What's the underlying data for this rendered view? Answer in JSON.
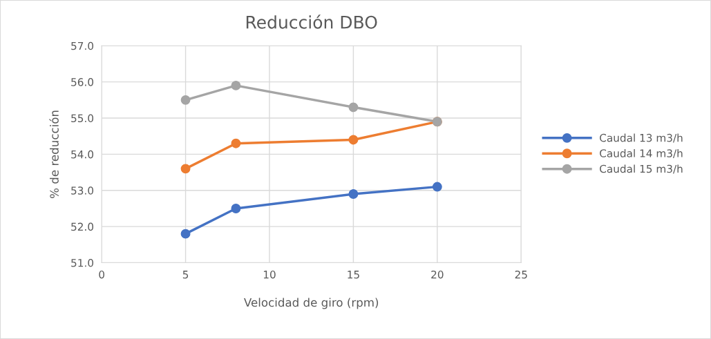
{
  "chart_data": {
    "type": "line",
    "title": "Reducción DBO",
    "xlabel": "Velocidad de giro (rpm)",
    "ylabel": "% de reducción",
    "x": [
      5,
      8,
      15,
      20
    ],
    "series": [
      {
        "name": "Caudal 13 m3/h",
        "color": "#4472c4",
        "values": [
          51.8,
          52.5,
          52.9,
          53.1
        ]
      },
      {
        "name": "Caudal 14 m3/h",
        "color": "#ed7d31",
        "values": [
          53.6,
          54.3,
          54.4,
          54.9
        ]
      },
      {
        "name": "Caudal 15 m3/h",
        "color": "#a5a5a5",
        "values": [
          55.5,
          55.9,
          55.3,
          54.9
        ]
      }
    ],
    "xlim": [
      0,
      25
    ],
    "xticks": [
      0,
      5,
      10,
      15,
      20,
      25
    ],
    "ylim": [
      51,
      57
    ],
    "yticks": [
      {
        "value": 51,
        "label": "51.0"
      },
      {
        "value": 52,
        "label": "52.0"
      },
      {
        "value": 53,
        "label": "53.0"
      },
      {
        "value": 54,
        "label": "54.0"
      },
      {
        "value": 55,
        "label": "55.0"
      },
      {
        "value": 56,
        "label": "56.0"
      },
      {
        "value": 57,
        "label": "57.0"
      }
    ],
    "grid": true,
    "legend": "right",
    "marker": "circle",
    "line_style": "solid"
  }
}
